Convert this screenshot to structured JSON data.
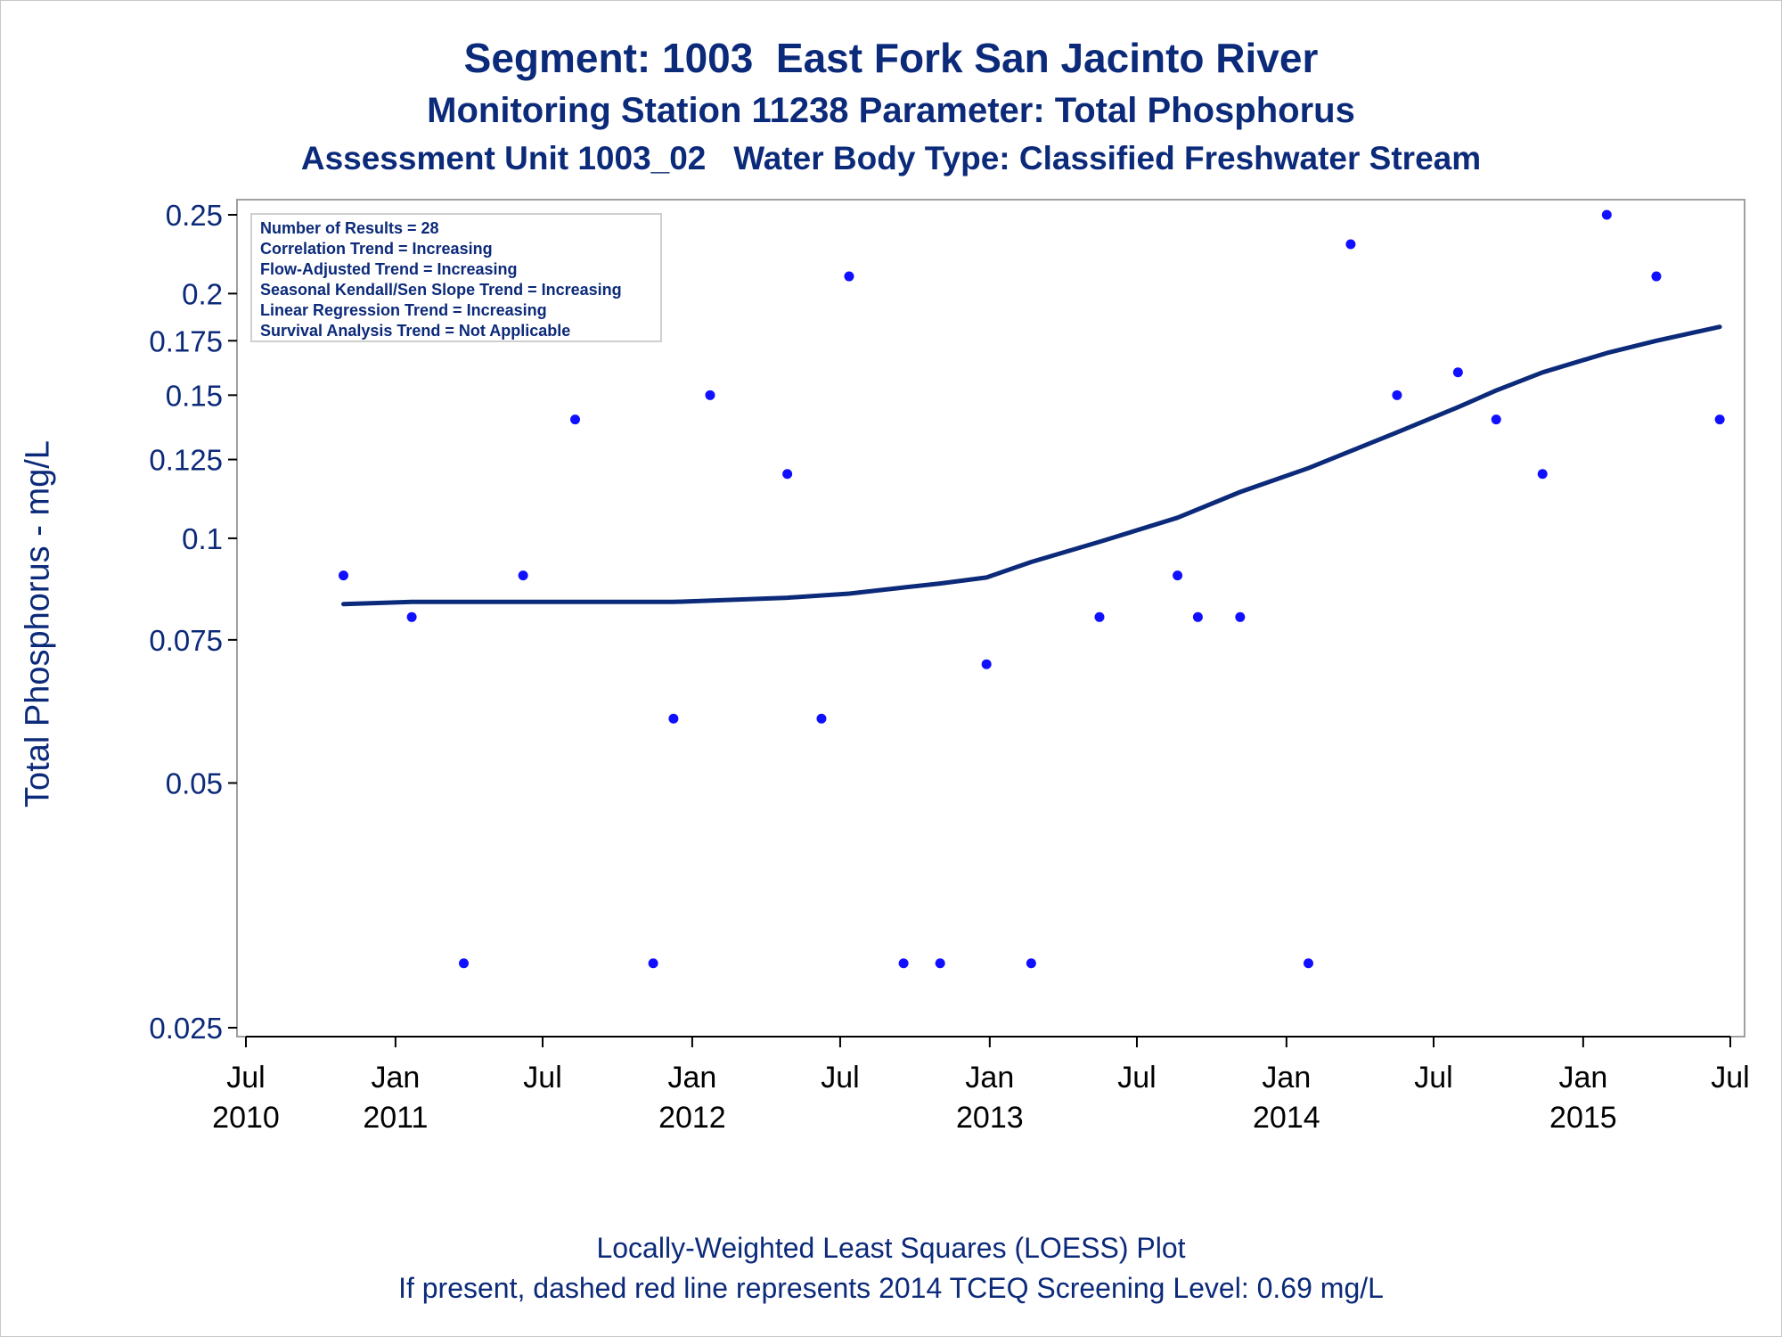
{
  "chart_data": {
    "type": "scatter",
    "title": "Segment: 1003  East Fork San Jacinto River",
    "subtitle": "Monitoring Station 11238 Parameter: Total Phosphorus",
    "subtitle2": "Assessment Unit 1003_02   Water Body Type: Classified Freshwater Stream",
    "ylabel": "Total Phosphorus - mg/L",
    "xlabel": "",
    "footnotes": [
      "Locally-Weighted Least Squares (LOESS) Plot",
      "If present, dashed red line represents 2014 TCEQ Screening Level: 0.69 mg/L"
    ],
    "y_scale": "log",
    "ylim": [
      0.025,
      0.25
    ],
    "y_ticks": [
      {
        "value": 0.025,
        "label": "0.025"
      },
      {
        "value": 0.05,
        "label": "0.05"
      },
      {
        "value": 0.075,
        "label": "0.075"
      },
      {
        "value": 0.1,
        "label": "0.1"
      },
      {
        "value": 0.125,
        "label": "0.125"
      },
      {
        "value": 0.15,
        "label": "0.15"
      },
      {
        "value": 0.175,
        "label": "0.175"
      },
      {
        "value": 0.2,
        "label": "0.2"
      },
      {
        "value": 0.25,
        "label": "0.25"
      }
    ],
    "xlim": [
      "2010-07-01",
      "2015-07-01"
    ],
    "x_ticks": [
      {
        "date": "2010-07-01",
        "label1": "Jul",
        "label2": "2010"
      },
      {
        "date": "2011-01-01",
        "label1": "Jan",
        "label2": "2011"
      },
      {
        "date": "2011-07-01",
        "label1": "Jul",
        "label2": ""
      },
      {
        "date": "2012-01-01",
        "label1": "Jan",
        "label2": "2012"
      },
      {
        "date": "2012-07-01",
        "label1": "Jul",
        "label2": ""
      },
      {
        "date": "2013-01-01",
        "label1": "Jan",
        "label2": "2013"
      },
      {
        "date": "2013-07-01",
        "label1": "Jul",
        "label2": ""
      },
      {
        "date": "2014-01-01",
        "label1": "Jan",
        "label2": "2014"
      },
      {
        "date": "2014-07-01",
        "label1": "Jul",
        "label2": ""
      },
      {
        "date": "2015-01-01",
        "label1": "Jan",
        "label2": "2015"
      },
      {
        "date": "2015-07-01",
        "label1": "Jul",
        "label2": ""
      }
    ],
    "legend_position": "top-left",
    "legend_lines": [
      "Number of Results = 28",
      "Correlation Trend = Increasing",
      "Flow-Adjusted Trend = Increasing",
      "Seasonal Kendall/Sen Slope Trend = Increasing",
      "Linear Regression Trend = Increasing",
      "Survival Analysis Trend = Not Applicable"
    ],
    "points": [
      {
        "x": "2010-10-29",
        "y": 0.09
      },
      {
        "x": "2011-01-21",
        "y": 0.08
      },
      {
        "x": "2011-03-26",
        "y": 0.03
      },
      {
        "x": "2011-06-07",
        "y": 0.09
      },
      {
        "x": "2011-08-10",
        "y": 0.14
      },
      {
        "x": "2011-11-14",
        "y": 0.03
      },
      {
        "x": "2011-12-09",
        "y": 0.06
      },
      {
        "x": "2012-01-23",
        "y": 0.15
      },
      {
        "x": "2012-04-27",
        "y": 0.12
      },
      {
        "x": "2012-06-08",
        "y": 0.06
      },
      {
        "x": "2012-07-12",
        "y": 0.21
      },
      {
        "x": "2012-09-17",
        "y": 0.03
      },
      {
        "x": "2012-11-01",
        "y": 0.03
      },
      {
        "x": "2012-12-28",
        "y": 0.07
      },
      {
        "x": "2013-02-21",
        "y": 0.03
      },
      {
        "x": "2013-05-16",
        "y": 0.08
      },
      {
        "x": "2013-08-20",
        "y": 0.09
      },
      {
        "x": "2013-09-14",
        "y": 0.08
      },
      {
        "x": "2013-11-05",
        "y": 0.08
      },
      {
        "x": "2014-01-28",
        "y": 0.03
      },
      {
        "x": "2014-03-21",
        "y": 0.23
      },
      {
        "x": "2014-05-17",
        "y": 0.15
      },
      {
        "x": "2014-07-31",
        "y": 0.16
      },
      {
        "x": "2014-09-16",
        "y": 0.14
      },
      {
        "x": "2014-11-12",
        "y": 0.12
      },
      {
        "x": "2015-01-30",
        "y": 0.25
      },
      {
        "x": "2015-04-01",
        "y": 0.21
      },
      {
        "x": "2015-06-18",
        "y": 0.14
      }
    ],
    "loess": [
      {
        "x": "2010-10-29",
        "y": 0.083
      },
      {
        "x": "2011-01-21",
        "y": 0.0835
      },
      {
        "x": "2011-06-07",
        "y": 0.0835
      },
      {
        "x": "2011-12-09",
        "y": 0.0835
      },
      {
        "x": "2012-04-27",
        "y": 0.0845
      },
      {
        "x": "2012-07-12",
        "y": 0.0855
      },
      {
        "x": "2012-09-17",
        "y": 0.087
      },
      {
        "x": "2012-11-01",
        "y": 0.088
      },
      {
        "x": "2012-12-28",
        "y": 0.0895
      },
      {
        "x": "2013-02-21",
        "y": 0.0935
      },
      {
        "x": "2013-05-16",
        "y": 0.099
      },
      {
        "x": "2013-08-20",
        "y": 0.106
      },
      {
        "x": "2013-11-05",
        "y": 0.114
      },
      {
        "x": "2014-01-28",
        "y": 0.122
      },
      {
        "x": "2014-03-21",
        "y": 0.128
      },
      {
        "x": "2014-05-17",
        "y": 0.135
      },
      {
        "x": "2014-07-31",
        "y": 0.145
      },
      {
        "x": "2014-09-16",
        "y": 0.152
      },
      {
        "x": "2014-11-12",
        "y": 0.16
      },
      {
        "x": "2015-01-30",
        "y": 0.169
      },
      {
        "x": "2015-04-01",
        "y": 0.175
      },
      {
        "x": "2015-06-18",
        "y": 0.182
      }
    ],
    "colors": {
      "text": "#0c2a7a",
      "points": "#1010ff",
      "loess": "#0c2a7a",
      "frame": "#a0a0a0"
    }
  }
}
